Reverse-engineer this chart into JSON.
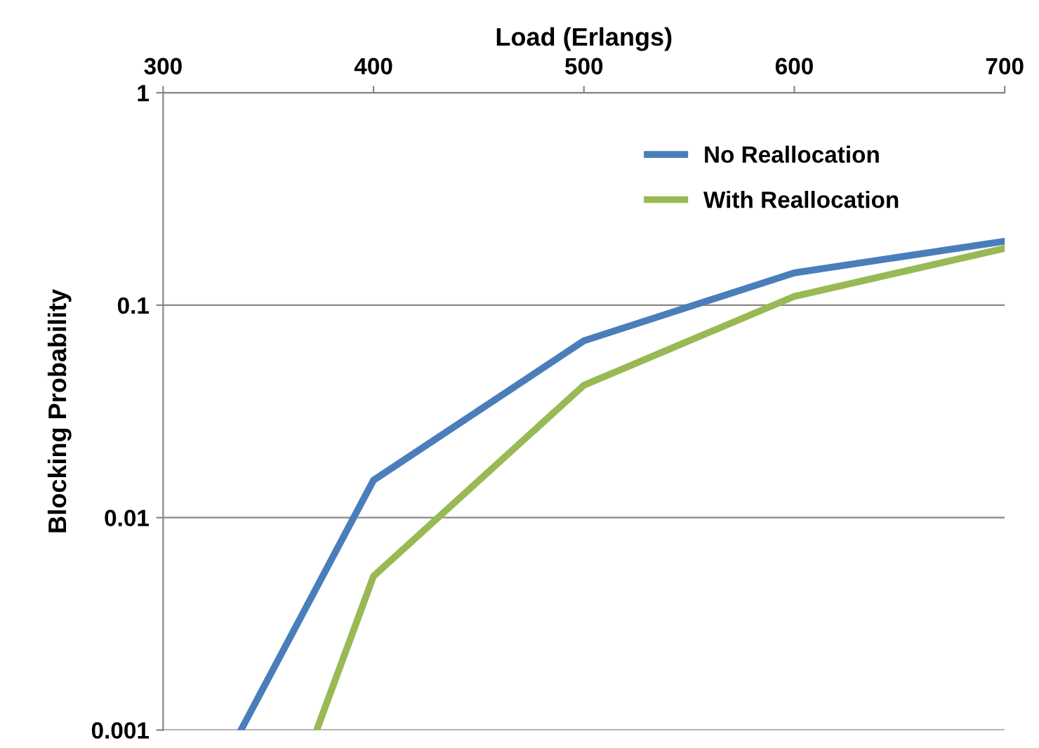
{
  "chart_data": {
    "type": "line",
    "xlabel": "Load (Erlangs)",
    "ylabel": "Blocking Probability",
    "series": [
      {
        "name": "No Reallocation",
        "color": "#4a7ebb",
        "x": [
          337,
          400,
          500,
          600,
          700
        ],
        "values": [
          0.001,
          0.015,
          0.068,
          0.142,
          0.2
        ]
      },
      {
        "name": "With Reallocation",
        "color": "#98b954",
        "x": [
          373,
          400,
          500,
          600,
          700
        ],
        "values": [
          0.001,
          0.0053,
          0.042,
          0.11,
          0.185
        ]
      }
    ],
    "log": "y",
    "xlim": [
      300,
      700
    ],
    "xticks": [
      300,
      400,
      500,
      600,
      700
    ],
    "ylim": [
      0.001,
      1
    ],
    "yticks": [
      {
        "value": 0.001,
        "label": "0.001"
      },
      {
        "value": 0.01,
        "label": "0.01"
      },
      {
        "value": 0.1,
        "label": "0.1"
      },
      {
        "value": 1,
        "label": "1"
      }
    ],
    "grid": "y",
    "legend": "top right",
    "marker": "none",
    "line_style": "solid"
  }
}
